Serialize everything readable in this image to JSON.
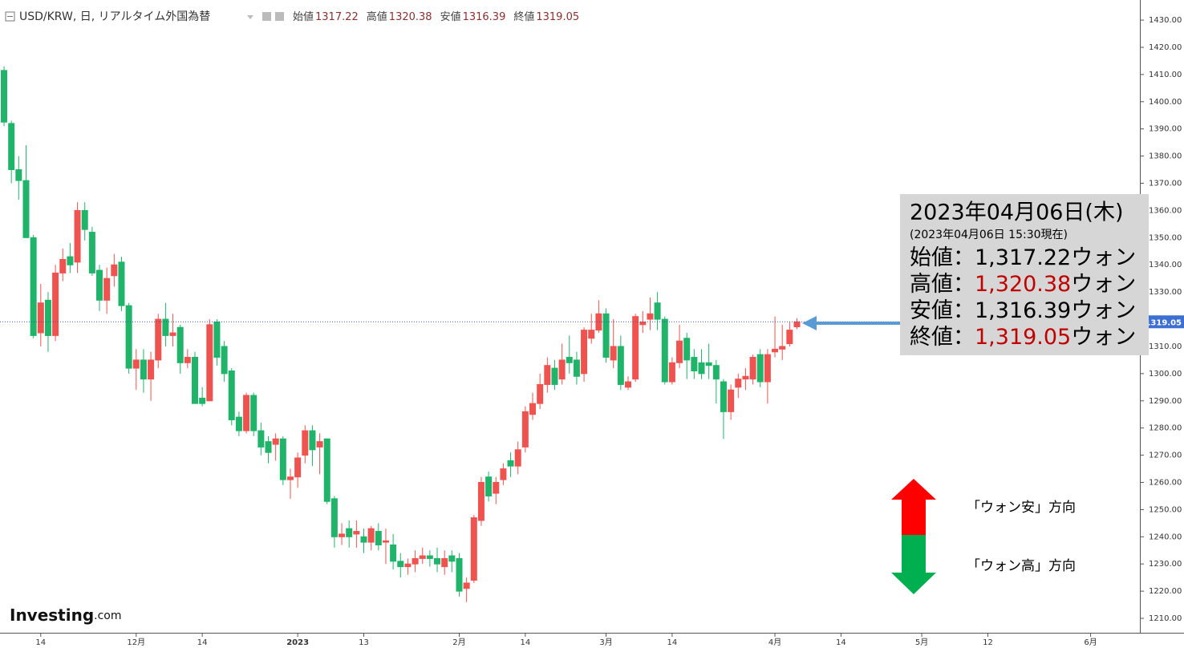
{
  "chart_data": {
    "type": "candlestick",
    "header": {
      "symbol": "USD/KRW, 日, リアルタイム外国為替",
      "items": [
        {
          "label": "始値",
          "value": 1317.22
        },
        {
          "label": "高値",
          "value": 1320.38
        },
        {
          "label": "安値",
          "value": 1316.39
        },
        {
          "label": "終値",
          "value": 1319.05
        }
      ]
    },
    "info_box": {
      "date": "2023年04月06日(木)",
      "asof": "(2023年04月06日 15:30現在)",
      "separator": "：",
      "rows": [
        {
          "label": "始値",
          "value": "1,317.22",
          "unit": "ウォン",
          "color": "#000000"
        },
        {
          "label": "高値",
          "value": "1,320.38",
          "unit": "ウォン",
          "color": "#c00000"
        },
        {
          "label": "安値",
          "value": "1,316.39",
          "unit": "ウォン",
          "color": "#000000"
        },
        {
          "label": "終値",
          "value": "1,319.05",
          "unit": "ウォン",
          "color": "#c00000"
        }
      ]
    },
    "annotations": {
      "weak": "「ウォン安」方向",
      "strong": "「ウォン高」方向"
    },
    "logo": {
      "main": "Investing",
      "suffix": ".com"
    },
    "last_label": "1319.05",
    "up_color": "#ef5350",
    "down_color": "#1fb46a",
    "grid": false,
    "x": [
      0,
      1,
      2,
      3,
      4,
      5,
      6,
      7,
      8,
      9,
      10,
      11,
      12,
      13,
      14,
      15,
      16,
      17,
      18,
      19,
      20,
      21,
      22,
      23,
      24,
      25,
      26,
      27,
      28,
      29,
      30,
      31,
      32,
      33,
      34,
      35,
      36,
      37,
      38,
      39,
      40,
      41,
      42,
      43,
      44,
      45,
      46,
      47,
      48,
      49,
      50,
      51,
      52,
      53,
      54,
      55,
      56,
      57,
      58,
      59,
      60,
      61,
      62,
      63,
      64,
      65,
      66,
      67,
      68,
      69,
      70,
      71,
      72,
      73,
      74,
      75,
      76,
      77,
      78,
      79,
      80,
      81,
      82,
      83,
      84,
      85,
      86,
      87,
      88,
      89,
      90,
      91,
      92,
      93,
      94,
      95,
      96,
      97,
      98,
      99,
      100,
      101,
      102,
      103,
      104,
      105,
      106,
      107,
      108
    ],
    "open": [
      1411.5,
      1392,
      1375,
      1371,
      1350,
      1315,
      1327,
      1314,
      1337,
      1343,
      1341,
      1360,
      1352,
      1338,
      1327,
      1336,
      1341,
      1325,
      1302,
      1305,
      1298,
      1305,
      1320,
      1314,
      1317,
      1304,
      1306,
      1291,
      1290,
      1319,
      1310,
      1301,
      1284,
      1279,
      1292,
      1279,
      1275,
      1274,
      1276,
      1261,
      1262,
      1270,
      1279,
      1273,
      1276,
      1254,
      1240,
      1243,
      1241,
      1240,
      1238,
      1242,
      1238,
      1237,
      1231,
      1229,
      1230,
      1232,
      1233,
      1232,
      1229,
      1233,
      1232,
      1221,
      1224,
      1246,
      1262,
      1256,
      1261,
      1268,
      1266,
      1273,
      1285,
      1289,
      1296,
      1302,
      1298,
      1306,
      1305,
      1300,
      1313,
      1316,
      1322,
      1305,
      1310,
      1295,
      1298,
      1318,
      1320,
      1326,
      1320,
      1297,
      1304,
      1313,
      1306,
      1304,
      1304,
      1303,
      1297,
      1286,
      1295,
      1298,
      1298,
      1307,
      1297,
      1308,
      1309,
      1311,
      1317.22
    ],
    "high": [
      1413,
      1393,
      1380,
      1384,
      1351,
      1333,
      1330,
      1340,
      1346,
      1348,
      1363,
      1363,
      1354,
      1340,
      1339,
      1344,
      1343,
      1326,
      1309,
      1309,
      1308,
      1322,
      1326,
      1322,
      1318,
      1309,
      1308,
      1295,
      1320,
      1320,
      1312,
      1302,
      1286,
      1293,
      1293,
      1282,
      1277,
      1278,
      1277,
      1265,
      1271,
      1281,
      1281,
      1278,
      1276,
      1255,
      1245,
      1246,
      1246,
      1243,
      1244,
      1245,
      1243,
      1241,
      1234,
      1232,
      1235,
      1236,
      1235,
      1236,
      1235,
      1235,
      1234,
      1225,
      1248,
      1262,
      1264,
      1262,
      1267,
      1271,
      1275,
      1288,
      1293,
      1300,
      1306,
      1305,
      1311,
      1314,
      1308,
      1317,
      1322,
      1327,
      1324,
      1320,
      1314,
      1299,
      1322,
      1323,
      1328,
      1330,
      1321,
      1306,
      1318,
      1315,
      1309,
      1309,
      1311,
      1305,
      1298,
      1296,
      1300,
      1302,
      1307,
      1309,
      1309,
      1321,
      1318,
      1319,
      1320.38
    ],
    "low": [
      1391,
      1370,
      1364,
      1350,
      1313,
      1310,
      1308,
      1312,
      1334,
      1337,
      1337,
      1349,
      1336,
      1323,
      1322,
      1332,
      1323,
      1300,
      1294,
      1293,
      1290,
      1302,
      1310,
      1310,
      1300,
      1302,
      1289,
      1288,
      1290,
      1303,
      1297,
      1281,
      1277,
      1278,
      1277,
      1270,
      1267,
      1268,
      1259,
      1254,
      1258,
      1267,
      1266,
      1263,
      1252,
      1236,
      1237,
      1236,
      1236,
      1234,
      1235,
      1235,
      1230,
      1228,
      1225,
      1226,
      1227,
      1230,
      1229,
      1227,
      1226,
      1227,
      1218,
      1216,
      1223,
      1244,
      1253,
      1252,
      1259,
      1262,
      1263,
      1271,
      1283,
      1287,
      1293,
      1294,
      1296,
      1300,
      1296,
      1297,
      1311,
      1315,
      1304,
      1302,
      1294,
      1294,
      1297,
      1315,
      1316,
      1316,
      1296,
      1296,
      1302,
      1298,
      1298,
      1298,
      1298,
      1289,
      1276,
      1283,
      1291,
      1294,
      1296,
      1295,
      1289,
      1306,
      1305,
      1310,
      1316.39
    ],
    "close": [
      1392.5,
      1375,
      1371,
      1350,
      1314,
      1326,
      1314,
      1337,
      1342,
      1340,
      1360,
      1353,
      1337,
      1327,
      1335,
      1340,
      1325,
      1302,
      1305,
      1298,
      1305,
      1320,
      1314,
      1315,
      1304,
      1306,
      1289,
      1289,
      1318,
      1306,
      1300,
      1283,
      1279,
      1292,
      1279,
      1273,
      1271,
      1276,
      1261,
      1262,
      1269,
      1279,
      1272,
      1275,
      1253,
      1240,
      1241,
      1240,
      1242,
      1238,
      1243,
      1237,
      1238.5,
      1231,
      1229,
      1230,
      1232,
      1233,
      1232,
      1230,
      1232,
      1231,
      1220,
      1223,
      1247,
      1260,
      1255,
      1260,
      1265,
      1266,
      1272,
      1286,
      1289,
      1296,
      1303,
      1296,
      1305,
      1304,
      1299,
      1316,
      1316,
      1322,
      1306,
      1310,
      1296,
      1297,
      1321,
      1319,
      1322,
      1320,
      1297,
      1304,
      1312,
      1305,
      1301,
      1300,
      1303,
      1298,
      1286,
      1294,
      1298,
      1299,
      1306,
      1297,
      1307,
      1309,
      1310,
      1316,
      1319.05
    ],
    "xlim": [
      -0.55,
      154.6
    ],
    "xticks": [
      {
        "value": 5,
        "label": "14"
      },
      {
        "value": 18,
        "label": "12月"
      },
      {
        "value": 27,
        "label": "14"
      },
      {
        "value": 40,
        "label": "2023"
      },
      {
        "value": 49,
        "label": "13"
      },
      {
        "value": 62,
        "label": "2月"
      },
      {
        "value": 71,
        "label": "14"
      },
      {
        "value": 82,
        "label": "3月"
      },
      {
        "value": 91,
        "label": "14"
      },
      {
        "value": 105,
        "label": "4月"
      },
      {
        "value": 114,
        "label": "14"
      },
      {
        "value": 125,
        "label": "5月"
      },
      {
        "value": 134,
        "label": "12"
      },
      {
        "value": 148,
        "label": "6月"
      }
    ],
    "ylim": [
      1204.7,
      1437.4
    ],
    "yticks": [
      {
        "value": 1210,
        "label": "1210.00"
      },
      {
        "value": 1220,
        "label": "1220.00"
      },
      {
        "value": 1230,
        "label": "1230.00"
      },
      {
        "value": 1240,
        "label": "1240.00"
      },
      {
        "value": 1250,
        "label": "1250.00"
      },
      {
        "value": 1260,
        "label": "1260.00"
      },
      {
        "value": 1270,
        "label": "1270.00"
      },
      {
        "value": 1280,
        "label": "1280.00"
      },
      {
        "value": 1290,
        "label": "1290.00"
      },
      {
        "value": 1300,
        "label": "1300.00"
      },
      {
        "value": 1310,
        "label": "1310.00"
      },
      {
        "value": 1320,
        "label": "1320.00"
      },
      {
        "value": 1330,
        "label": "1330.00"
      },
      {
        "value": 1340,
        "label": "1340.00"
      },
      {
        "value": 1350,
        "label": "1350.00"
      },
      {
        "value": 1360,
        "label": "1360.00"
      },
      {
        "value": 1370,
        "label": "1370.00"
      },
      {
        "value": 1380,
        "label": "1380.00"
      },
      {
        "value": 1390,
        "label": "1390.00"
      },
      {
        "value": 1400,
        "label": "1400.00"
      },
      {
        "value": 1410,
        "label": "1410.00"
      },
      {
        "value": 1420,
        "label": "1420.00"
      },
      {
        "value": 1430,
        "label": "1430.00"
      }
    ]
  }
}
